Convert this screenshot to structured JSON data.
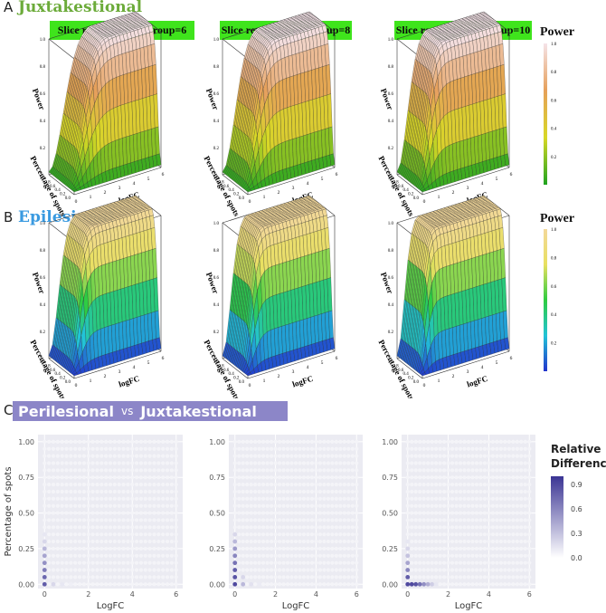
{
  "panel_a": {
    "letter": "A",
    "title": "Juxtakestional",
    "title_color": "#6cab3a"
  },
  "panel_b": {
    "letter": "B",
    "title": "Epilesional",
    "title_color": "#3a9ae0"
  },
  "panel_c": {
    "letter": "C",
    "title_left": "Perilesional",
    "vs": "vs",
    "title_right": "Juxtakestional",
    "banner_color": "#8c86c8"
  },
  "banners": [
    "Slice replicates per group=6",
    "Slice replicates per group=8",
    "Slice replicates per group=10"
  ],
  "legend_power": {
    "title": "Power",
    "ticks": [
      "1.0",
      "0.8",
      "0.6",
      "0.4",
      "0.2"
    ]
  },
  "legend_relative": {
    "title_line1": "Relative",
    "title_line2": "Difference",
    "ticks": [
      "0.9",
      "0.6",
      "0.3",
      "0.0"
    ],
    "color_high": "#3b3594",
    "color_low": "#ffffff"
  },
  "chart_data": [
    {
      "type": "surface",
      "panel": "A",
      "group": "Slice replicates per group=6",
      "zlabel": "Power",
      "ylabel": "Percentage of spots",
      "xlabel": "logFC",
      "z_ticks": [
        "1.0",
        "0.8",
        "0.6",
        "0.4",
        "0.2"
      ],
      "y_ticks": [
        "0.0",
        "0.2",
        "0.4",
        "0.6",
        "0.8",
        "1.0"
      ],
      "x_ticks": [
        "0",
        "1",
        "2",
        "3",
        "4",
        "5",
        "6"
      ],
      "colorscale": [
        "#1fa31f",
        "#d8d826",
        "#e6a05a",
        "#f5e3e8"
      ]
    },
    {
      "type": "surface",
      "panel": "A",
      "group": "Slice replicates per group=8",
      "zlabel": "Power",
      "ylabel": "Percentage of spots",
      "xlabel": "logFC",
      "z_ticks": [
        "1.0",
        "0.8",
        "0.6",
        "0.4",
        "0.2"
      ],
      "y_ticks": [
        "0.0",
        "0.2",
        "0.4",
        "0.6",
        "0.8",
        "1.0"
      ],
      "x_ticks": [
        "0",
        "1",
        "2",
        "3",
        "4",
        "5",
        "6"
      ],
      "colorscale": [
        "#1fa31f",
        "#d8d826",
        "#e6a05a",
        "#f5e3e8"
      ]
    },
    {
      "type": "surface",
      "panel": "A",
      "group": "Slice replicates per group=10",
      "zlabel": "Power",
      "ylabel": "Percentage of spots",
      "xlabel": "logFC",
      "z_ticks": [
        "1.0",
        "0.8",
        "0.6",
        "0.4",
        "0.2"
      ],
      "y_ticks": [
        "0.0",
        "0.2",
        "0.4",
        "0.6",
        "0.8",
        "1.0"
      ],
      "x_ticks": [
        "0",
        "1",
        "2",
        "3",
        "4",
        "5",
        "6"
      ],
      "colorscale": [
        "#1fa31f",
        "#d8d826",
        "#e6a05a",
        "#f5e3e8"
      ]
    },
    {
      "type": "surface",
      "panel": "B",
      "zlabel": "Power",
      "ylabel": "Percentage of spots",
      "xlabel": "logFC",
      "z_ticks": [
        "1.0",
        "0.8",
        "0.6",
        "0.4",
        "0.2"
      ],
      "y_ticks": [
        "0.0",
        "0.2",
        "0.4",
        "0.6",
        "0.8",
        "1.0"
      ],
      "x_ticks": [
        "0",
        "1",
        "2",
        "3",
        "4",
        "5",
        "6"
      ],
      "colorscale": [
        "#2233cc",
        "#22c3d8",
        "#2ecc40",
        "#e8e060",
        "#f3d89a"
      ]
    },
    {
      "type": "surface",
      "panel": "B",
      "zlabel": "Power",
      "ylabel": "Percentage of spots",
      "xlabel": "logFC",
      "z_ticks": [
        "1.0",
        "0.8",
        "0.6",
        "0.4",
        "0.2"
      ],
      "y_ticks": [
        "0.0",
        "0.2",
        "0.4",
        "0.6",
        "0.8",
        "1.0"
      ],
      "x_ticks": [
        "0",
        "1",
        "2",
        "3",
        "4",
        "5",
        "6"
      ],
      "colorscale": [
        "#2233cc",
        "#22c3d8",
        "#2ecc40",
        "#e8e060",
        "#f3d89a"
      ]
    },
    {
      "type": "surface",
      "panel": "B",
      "zlabel": "Power",
      "ylabel": "Percentage of spots",
      "xlabel": "logFC",
      "z_ticks": [
        "1.0",
        "0.8",
        "0.6",
        "0.4",
        "0.2"
      ],
      "y_ticks": [
        "0.0",
        "0.2",
        "0.4",
        "0.6",
        "0.8",
        "1.0"
      ],
      "x_ticks": [
        "0",
        "1",
        "2",
        "3",
        "4",
        "5",
        "6"
      ],
      "colorscale": [
        "#2233cc",
        "#22c3d8",
        "#2ecc40",
        "#e8e060",
        "#f3d89a"
      ]
    },
    {
      "type": "scatter",
      "panel": "C",
      "xlabel": "LogFC",
      "ylabel": "Percentage of spots",
      "x_ticks": [
        "0",
        "2",
        "4",
        "6"
      ],
      "y_ticks": [
        "0.00",
        "0.25",
        "0.50",
        "0.75",
        "1.00"
      ],
      "xlim": [
        -0.3,
        6.3
      ],
      "ylim": [
        -0.03,
        1.05
      ],
      "grid": "on",
      "highlights": [
        [
          0,
          0.0,
          0.8
        ],
        [
          0,
          0.05,
          0.75
        ],
        [
          0,
          0.1,
          0.65
        ],
        [
          0,
          0.15,
          0.55
        ],
        [
          0,
          0.2,
          0.45
        ],
        [
          0,
          0.25,
          0.35
        ],
        [
          0,
          0.3,
          0.2
        ],
        [
          0,
          0.35,
          0.12
        ],
        [
          0.4,
          0.0,
          0.2
        ],
        [
          0.8,
          0.0,
          0.12
        ],
        [
          1.2,
          0.0,
          0.08
        ]
      ]
    },
    {
      "type": "scatter",
      "panel": "C",
      "xlabel": "LogFC",
      "ylabel": "",
      "x_ticks": [
        "0",
        "2",
        "4",
        "6"
      ],
      "y_ticks": [
        "0.00",
        "0.25",
        "0.50",
        "0.75",
        "1.00"
      ],
      "xlim": [
        -0.3,
        6.3
      ],
      "ylim": [
        -0.03,
        1.05
      ],
      "grid": "on",
      "highlights": [
        [
          0,
          0.0,
          0.9
        ],
        [
          0,
          0.05,
          0.85
        ],
        [
          0,
          0.1,
          0.8
        ],
        [
          0,
          0.15,
          0.7
        ],
        [
          0,
          0.2,
          0.6
        ],
        [
          0,
          0.25,
          0.5
        ],
        [
          0,
          0.3,
          0.35
        ],
        [
          0,
          0.35,
          0.2
        ],
        [
          0.4,
          0.0,
          0.35
        ],
        [
          0.4,
          0.05,
          0.2
        ],
        [
          0.8,
          0.0,
          0.15
        ],
        [
          1.2,
          0.0,
          0.1
        ]
      ]
    },
    {
      "type": "scatter",
      "panel": "C",
      "xlabel": "LogFC",
      "ylabel": "",
      "x_ticks": [
        "0",
        "2",
        "4",
        "6"
      ],
      "y_ticks": [
        "0.00",
        "0.25",
        "0.50",
        "0.75",
        "1.00"
      ],
      "xlim": [
        -0.3,
        6.3
      ],
      "ylim": [
        -0.03,
        1.05
      ],
      "grid": "on",
      "highlights": [
        [
          0,
          0.0,
          0.9
        ],
        [
          0,
          0.05,
          0.8
        ],
        [
          0,
          0.1,
          0.6
        ],
        [
          0,
          0.15,
          0.45
        ],
        [
          0,
          0.2,
          0.3
        ],
        [
          0,
          0.25,
          0.2
        ],
        [
          0,
          0.3,
          0.12
        ],
        [
          0.2,
          0.0,
          0.9
        ],
        [
          0.4,
          0.0,
          0.85
        ],
        [
          0.6,
          0.0,
          0.7
        ],
        [
          0.8,
          0.0,
          0.55
        ],
        [
          1.0,
          0.0,
          0.4
        ],
        [
          1.2,
          0.0,
          0.25
        ],
        [
          1.4,
          0.0,
          0.12
        ]
      ]
    }
  ]
}
